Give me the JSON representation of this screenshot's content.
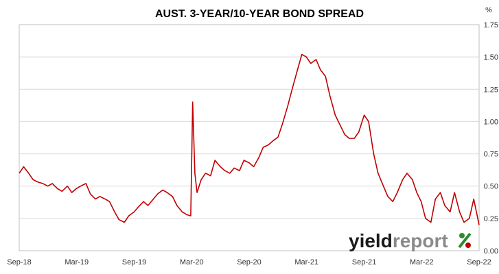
{
  "chart_data": {
    "type": "line",
    "title": "AUST. 3-YEAR/10-YEAR BOND SPREAD",
    "unit_label": "%",
    "ylim": [
      0.0,
      1.75
    ],
    "y_ticks": [
      "0.00",
      "0.25",
      "0.50",
      "0.75",
      "1.00",
      "1.25",
      "1.50",
      "1.75"
    ],
    "x_ticks": [
      "Sep-18",
      "Mar-19",
      "Sep-19",
      "Mar-20",
      "Sep-20",
      "Mar-21",
      "Sep-21",
      "Mar-22",
      "Sep-22"
    ],
    "xlim": [
      "2018-09-01",
      "2022-09-01"
    ],
    "grid": true,
    "series_color": "#c00000",
    "series": [
      {
        "x": [
          "2018-09-01",
          "2018-09-15",
          "2018-10-01",
          "2018-10-15",
          "2018-11-01",
          "2018-11-15",
          "2018-12-01",
          "2018-12-15",
          "2019-01-01",
          "2019-01-15",
          "2019-02-01",
          "2019-02-15",
          "2019-03-01",
          "2019-03-15",
          "2019-04-01",
          "2019-04-15",
          "2019-05-01",
          "2019-05-15",
          "2019-06-01",
          "2019-06-15",
          "2019-07-01",
          "2019-07-15",
          "2019-08-01",
          "2019-08-15",
          "2019-09-01",
          "2019-09-15",
          "2019-10-01",
          "2019-10-15",
          "2019-11-01",
          "2019-11-15",
          "2019-12-01",
          "2019-12-15",
          "2020-01-01",
          "2020-01-15",
          "2020-02-01",
          "2020-02-15",
          "2020-02-28",
          "2020-03-05",
          "2020-03-12",
          "2020-03-19",
          "2020-04-01",
          "2020-04-15",
          "2020-05-01",
          "2020-05-15",
          "2020-06-01",
          "2020-06-15",
          "2020-07-01",
          "2020-07-15",
          "2020-08-01",
          "2020-08-15",
          "2020-09-01",
          "2020-09-15",
          "2020-10-01",
          "2020-10-15",
          "2020-11-01",
          "2020-11-15",
          "2020-12-01",
          "2020-12-15",
          "2021-01-01",
          "2021-01-15",
          "2021-02-01",
          "2021-02-15",
          "2021-03-01",
          "2021-03-15",
          "2021-04-01",
          "2021-04-15",
          "2021-05-01",
          "2021-05-15",
          "2021-06-01",
          "2021-06-15",
          "2021-07-01",
          "2021-07-15",
          "2021-08-01",
          "2021-08-15",
          "2021-09-01",
          "2021-09-15",
          "2021-10-01",
          "2021-10-15",
          "2021-11-01",
          "2021-11-15",
          "2021-12-01",
          "2021-12-15",
          "2022-01-01",
          "2022-01-15",
          "2022-02-01",
          "2022-02-15",
          "2022-03-01",
          "2022-03-15",
          "2022-04-01",
          "2022-04-15",
          "2022-05-01",
          "2022-05-15",
          "2022-06-01",
          "2022-06-15",
          "2022-07-01",
          "2022-07-15",
          "2022-08-01",
          "2022-08-15",
          "2022-09-01"
        ],
        "values": [
          0.6,
          0.65,
          0.6,
          0.55,
          0.53,
          0.52,
          0.5,
          0.52,
          0.48,
          0.46,
          0.5,
          0.45,
          0.48,
          0.5,
          0.52,
          0.44,
          0.4,
          0.42,
          0.4,
          0.38,
          0.3,
          0.24,
          0.22,
          0.27,
          0.3,
          0.34,
          0.38,
          0.35,
          0.4,
          0.44,
          0.47,
          0.45,
          0.42,
          0.35,
          0.3,
          0.28,
          0.27,
          1.15,
          0.6,
          0.45,
          0.55,
          0.6,
          0.58,
          0.7,
          0.65,
          0.62,
          0.6,
          0.64,
          0.62,
          0.7,
          0.68,
          0.65,
          0.72,
          0.8,
          0.82,
          0.85,
          0.88,
          0.98,
          1.12,
          1.25,
          1.4,
          1.52,
          1.5,
          1.45,
          1.48,
          1.4,
          1.35,
          1.2,
          1.05,
          0.98,
          0.9,
          0.87,
          0.87,
          0.92,
          1.05,
          1.0,
          0.75,
          0.6,
          0.5,
          0.42,
          0.38,
          0.45,
          0.55,
          0.6,
          0.55,
          0.45,
          0.38,
          0.25,
          0.22,
          0.4,
          0.45,
          0.35,
          0.3,
          0.45,
          0.3,
          0.22,
          0.25,
          0.4,
          0.2
        ]
      }
    ]
  },
  "logo": {
    "text_dark": "yield",
    "text_light": "report",
    "symbol": "%",
    "color_dark": "#1a1a1a",
    "color_light": "#8a8a8a",
    "color_green": "#2e8b2e",
    "color_red": "#c00000"
  }
}
